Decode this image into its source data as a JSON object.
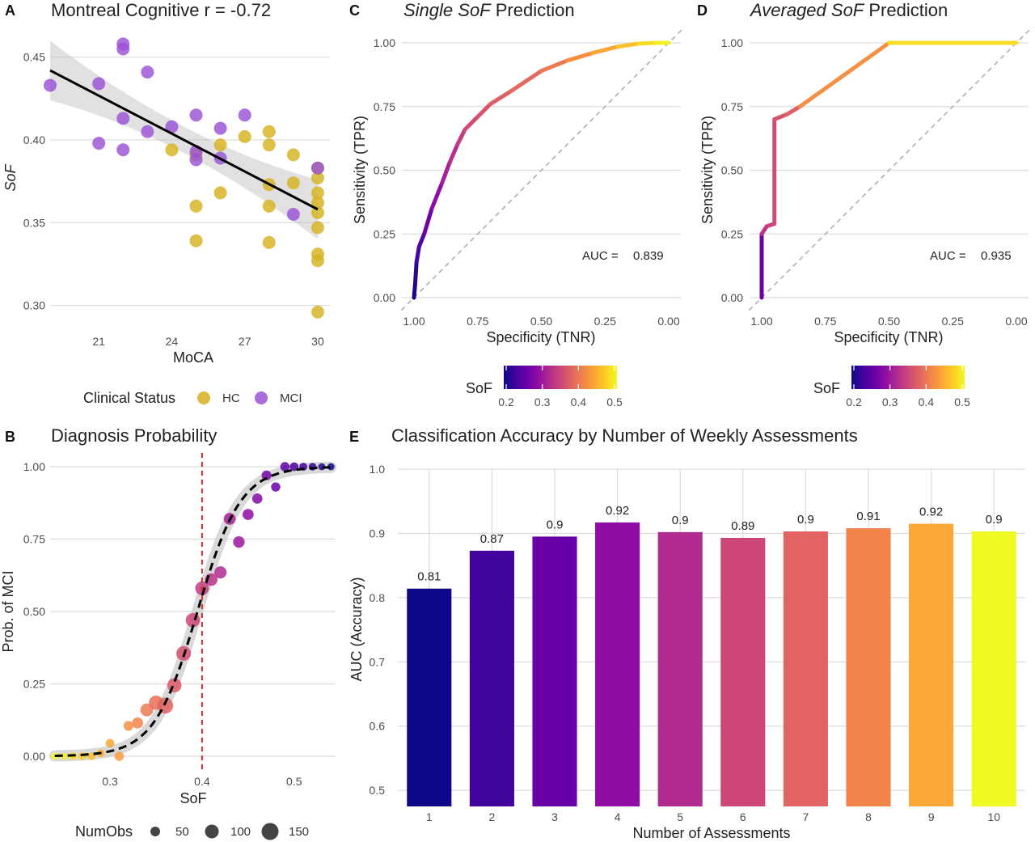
{
  "chart_data": [
    {
      "panel": "A",
      "type": "scatter",
      "title": "Montreal Cognitive r = -0.72",
      "xlabel": "MoCA",
      "ylabel": "SoF",
      "xlim": [
        19,
        30.5
      ],
      "ylim": [
        0.29,
        0.465
      ],
      "xticks": [
        21,
        24,
        27,
        30
      ],
      "yticks": [
        0.3,
        0.35,
        0.4,
        0.45
      ],
      "ytick_labels": [
        "0.30",
        "0.35",
        "0.40",
        "0.45"
      ],
      "fit_line": {
        "x": [
          19,
          30
        ],
        "y": [
          0.442,
          0.358
        ],
        "band_halfwidth_ends": 0.018,
        "band_halfwidth_center": 0.008
      },
      "legend": {
        "title": "Clinical Status",
        "entries": [
          "HC",
          "MCI"
        ]
      },
      "colors": {
        "HC": "#d4b21f",
        "MCI": "#9a52d6"
      },
      "series": [
        {
          "name": "HC",
          "points": [
            [
              24,
              0.394
            ],
            [
              25,
              0.36
            ],
            [
              25,
              0.339
            ],
            [
              25,
              0.391
            ],
            [
              26,
              0.368
            ],
            [
              26,
              0.397
            ],
            [
              27,
              0.402
            ],
            [
              28,
              0.405
            ],
            [
              28,
              0.397
            ],
            [
              28,
              0.373
            ],
            [
              28,
              0.36
            ],
            [
              28,
              0.338
            ],
            [
              29,
              0.391
            ],
            [
              29,
              0.374
            ],
            [
              30,
              0.383
            ],
            [
              30,
              0.377
            ],
            [
              30,
              0.368
            ],
            [
              30,
              0.362
            ],
            [
              30,
              0.356
            ],
            [
              30,
              0.347
            ],
            [
              30,
              0.331
            ],
            [
              30,
              0.327
            ],
            [
              30,
              0.296
            ]
          ]
        },
        {
          "name": "MCI",
          "points": [
            [
              19,
              0.433
            ],
            [
              21,
              0.434
            ],
            [
              21,
              0.398
            ],
            [
              22,
              0.458
            ],
            [
              22,
              0.455
            ],
            [
              22,
              0.413
            ],
            [
              22,
              0.394
            ],
            [
              23,
              0.441
            ],
            [
              23,
              0.405
            ],
            [
              24,
              0.408
            ],
            [
              25,
              0.415
            ],
            [
              25,
              0.393
            ],
            [
              25,
              0.388
            ],
            [
              26,
              0.407
            ],
            [
              26,
              0.389
            ],
            [
              27,
              0.415
            ],
            [
              29,
              0.355
            ],
            [
              30,
              0.383
            ]
          ]
        }
      ]
    },
    {
      "panel": "C",
      "type": "line",
      "title_italic": "Single SoF",
      "title_rest": " Prediction",
      "xlabel": "Specificity (TNR)",
      "ylabel": "Sensitivity (TPR)",
      "xticks": [
        "1.00",
        "0.75",
        "0.50",
        "0.25",
        "0.00"
      ],
      "yticks": [
        "0.00",
        "0.25",
        "0.50",
        "0.75",
        "1.00"
      ],
      "auc_label": "AUC = ",
      "auc_value": "0.839",
      "colorbar": {
        "title": "SoF",
        "ticks": [
          "0.2",
          "0.3",
          "0.4",
          "0.5"
        ]
      },
      "roc": [
        [
          1.0,
          0.0
        ],
        [
          0.995,
          0.06
        ],
        [
          0.99,
          0.14
        ],
        [
          0.98,
          0.2
        ],
        [
          0.96,
          0.25
        ],
        [
          0.93,
          0.35
        ],
        [
          0.89,
          0.45
        ],
        [
          0.86,
          0.53
        ],
        [
          0.83,
          0.6
        ],
        [
          0.8,
          0.66
        ],
        [
          0.75,
          0.71
        ],
        [
          0.7,
          0.76
        ],
        [
          0.62,
          0.81
        ],
        [
          0.5,
          0.89
        ],
        [
          0.4,
          0.93
        ],
        [
          0.3,
          0.96
        ],
        [
          0.2,
          0.985
        ],
        [
          0.12,
          0.997
        ],
        [
          0.05,
          1.0
        ],
        [
          0.0,
          1.0
        ]
      ],
      "roc_sof": [
        0.2,
        0.21,
        0.22,
        0.24,
        0.25,
        0.28,
        0.3,
        0.32,
        0.33,
        0.35,
        0.36,
        0.37,
        0.38,
        0.39,
        0.41,
        0.43,
        0.45,
        0.47,
        0.49,
        0.5
      ]
    },
    {
      "panel": "D",
      "type": "line",
      "title_italic": "Averaged SoF",
      "title_rest": " Prediction",
      "xlabel": "Specificity (TNR)",
      "ylabel": "Sensitivity (TPR)",
      "xticks": [
        "1.00",
        "0.75",
        "0.50",
        "0.25",
        "0.00"
      ],
      "yticks": [
        "0.00",
        "0.25",
        "0.50",
        "0.75",
        "1.00"
      ],
      "auc_label": "AUC = ",
      "auc_value": "0.935",
      "colorbar": {
        "title": "SoF",
        "ticks": [
          "0.2",
          "0.3",
          "0.4",
          "0.5"
        ]
      },
      "roc": [
        [
          1.0,
          0.0
        ],
        [
          1.0,
          0.25
        ],
        [
          0.98,
          0.28
        ],
        [
          0.95,
          0.29
        ],
        [
          0.95,
          0.7
        ],
        [
          0.9,
          0.72
        ],
        [
          0.85,
          0.75
        ],
        [
          0.5,
          1.0
        ],
        [
          0.0,
          1.0
        ]
      ],
      "roc_sof": [
        0.2,
        0.32,
        0.34,
        0.35,
        0.36,
        0.37,
        0.38,
        0.46,
        0.5
      ]
    },
    {
      "panel": "B",
      "type": "scatter",
      "title": "Diagnosis Probability",
      "xlabel": "SoF",
      "ylabel": "Prob. of MCI",
      "xlim": [
        0.235,
        0.545
      ],
      "ylim": [
        0.0,
        1.0
      ],
      "xticks": [
        0.3,
        0.4,
        0.5
      ],
      "xtick_labels": [
        "0.3",
        "0.4",
        "0.5"
      ],
      "yticks": [
        "0.00",
        "0.25",
        "0.50",
        "0.75",
        "1.00"
      ],
      "threshold_x": 0.4,
      "logistic": {
        "center": 0.395,
        "scale": 0.0235
      },
      "legend": {
        "title": "NumObs",
        "entries": [
          "50",
          "100",
          "150"
        ]
      },
      "points": [
        {
          "x": 0.24,
          "y": 0.0,
          "n": 5
        },
        {
          "x": 0.25,
          "y": 0.0,
          "n": 5
        },
        {
          "x": 0.26,
          "y": 0.0,
          "n": 8
        },
        {
          "x": 0.27,
          "y": 0.0,
          "n": 10
        },
        {
          "x": 0.28,
          "y": 0.0,
          "n": 10
        },
        {
          "x": 0.29,
          "y": 0.01,
          "n": 10
        },
        {
          "x": 0.3,
          "y": 0.045,
          "n": 15
        },
        {
          "x": 0.31,
          "y": 0.0,
          "n": 20
        },
        {
          "x": 0.32,
          "y": 0.105,
          "n": 25
        },
        {
          "x": 0.33,
          "y": 0.115,
          "n": 40
        },
        {
          "x": 0.34,
          "y": 0.16,
          "n": 65
        },
        {
          "x": 0.35,
          "y": 0.185,
          "n": 90
        },
        {
          "x": 0.36,
          "y": 0.175,
          "n": 125
        },
        {
          "x": 0.37,
          "y": 0.245,
          "n": 90
        },
        {
          "x": 0.38,
          "y": 0.355,
          "n": 100
        },
        {
          "x": 0.39,
          "y": 0.47,
          "n": 90
        },
        {
          "x": 0.4,
          "y": 0.58,
          "n": 80
        },
        {
          "x": 0.41,
          "y": 0.61,
          "n": 60
        },
        {
          "x": 0.42,
          "y": 0.635,
          "n": 55
        },
        {
          "x": 0.43,
          "y": 0.82,
          "n": 50
        },
        {
          "x": 0.44,
          "y": 0.74,
          "n": 45
        },
        {
          "x": 0.45,
          "y": 0.835,
          "n": 40
        },
        {
          "x": 0.46,
          "y": 0.89,
          "n": 30
        },
        {
          "x": 0.47,
          "y": 0.97,
          "n": 25
        },
        {
          "x": 0.48,
          "y": 0.93,
          "n": 20
        },
        {
          "x": 0.49,
          "y": 1.0,
          "n": 20
        },
        {
          "x": 0.5,
          "y": 1.0,
          "n": 15
        },
        {
          "x": 0.51,
          "y": 1.0,
          "n": 10
        },
        {
          "x": 0.52,
          "y": 1.0,
          "n": 8
        },
        {
          "x": 0.53,
          "y": 1.0,
          "n": 5
        },
        {
          "x": 0.54,
          "y": 1.0,
          "n": 5
        }
      ]
    },
    {
      "panel": "E",
      "type": "bar",
      "title": "Classification Accuracy by Number of Weekly Assessments",
      "xlabel": "Number of Assessments",
      "ylabel": "AUC (Accuracy)",
      "ylim": [
        0.475,
        1.0
      ],
      "yticks": [
        0.5,
        0.6,
        0.7,
        0.8,
        0.9,
        1.0
      ],
      "ytick_labels": [
        "0.5",
        "0.6",
        "0.7",
        "0.8",
        "0.9",
        "1.0"
      ],
      "categories": [
        "1",
        "2",
        "3",
        "4",
        "5",
        "6",
        "7",
        "8",
        "9",
        "10"
      ],
      "values": [
        0.814,
        0.873,
        0.895,
        0.917,
        0.902,
        0.893,
        0.903,
        0.908,
        0.915,
        0.903
      ],
      "value_labels": [
        "0.81",
        "0.87",
        "0.9",
        "0.92",
        "0.9",
        "0.89",
        "0.9",
        "0.91",
        "0.92",
        "0.9"
      ],
      "colors": [
        "#0d0887",
        "#41049d",
        "#6a00a8",
        "#8f0da4",
        "#b12a90",
        "#cc4778",
        "#e16462",
        "#f2844b",
        "#fca636",
        "#f0f921"
      ]
    }
  ],
  "panel_labels": [
    "A",
    "B",
    "C",
    "D",
    "E"
  ],
  "plasma": [
    "#0d0887",
    "#41049d",
    "#6a00a8",
    "#8f0da4",
    "#b12a90",
    "#cc4778",
    "#e16462",
    "#f2844b",
    "#fca636",
    "#fcce25",
    "#f0f921"
  ]
}
